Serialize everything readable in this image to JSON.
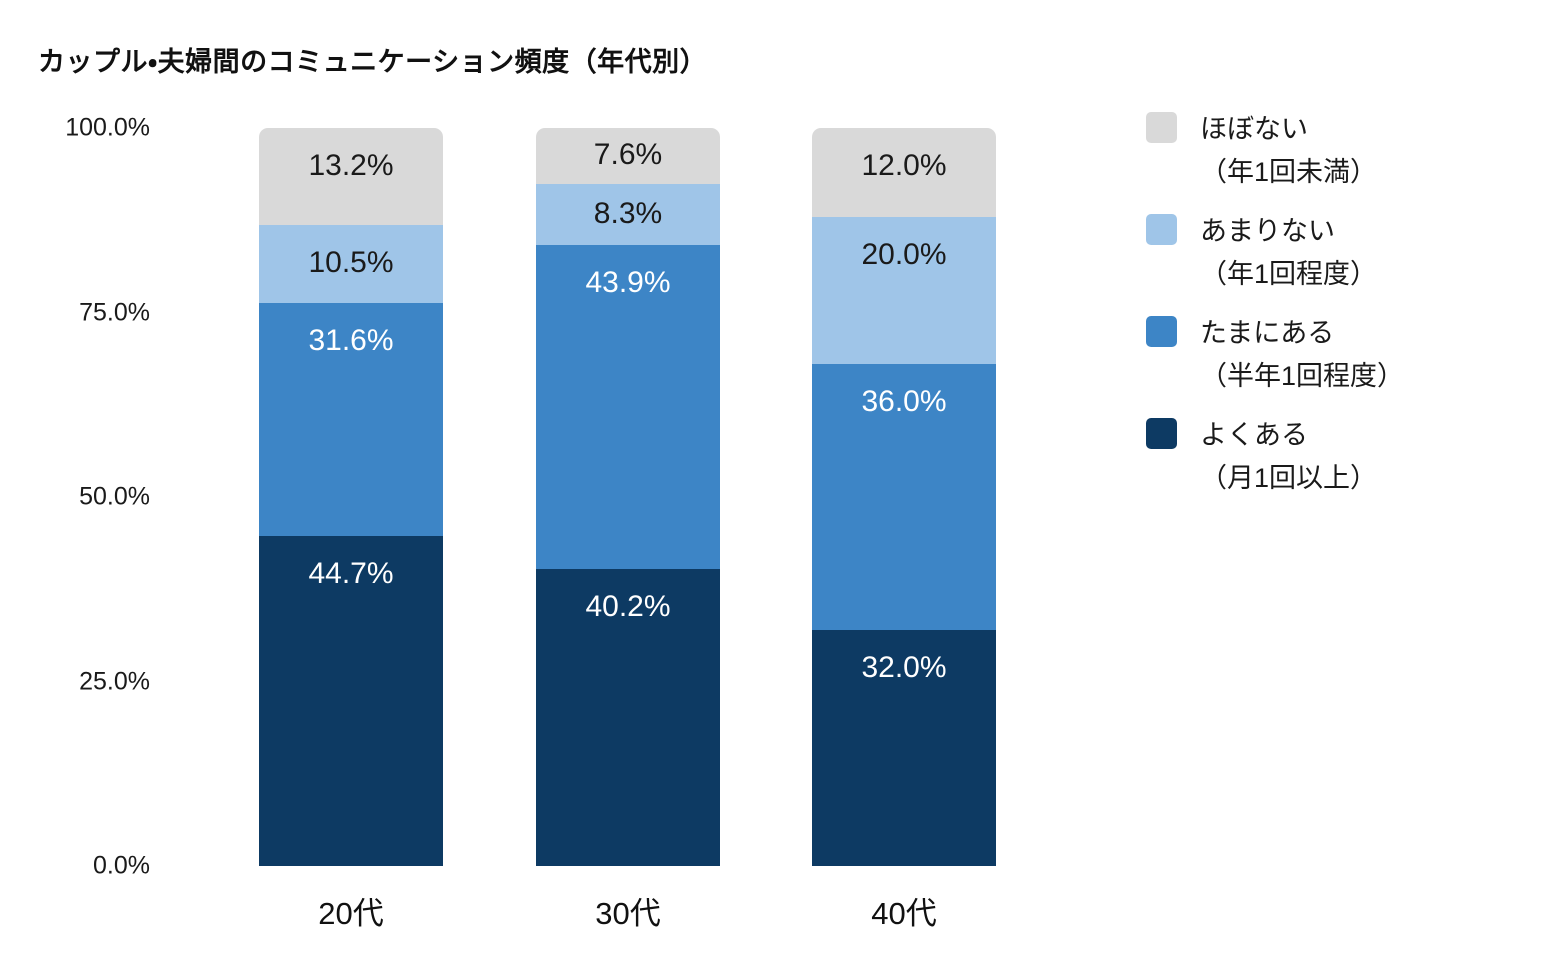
{
  "title": "カップル・夫婦間のコミュニケーション頻度（年代別）",
  "colors": {
    "background": "#ffffff",
    "title_text": "#111111",
    "axis_text": "#1a1a1a",
    "label_dark": "#1a1a1a",
    "label_light": "#ffffff"
  },
  "chart_data": {
    "type": "bar",
    "stacked": true,
    "percent_stacked": true,
    "title": "カップル・夫婦間のコミュニケーション頻度（年代別）",
    "categories": [
      "20代",
      "30代",
      "40代"
    ],
    "series": [
      {
        "name": "よくある（月1回以上）",
        "label": "よくある",
        "sublabel": "（月1回以上）",
        "color": "#0d3a63",
        "text_color": "#ffffff",
        "values": [
          44.7,
          40.2,
          32.0
        ]
      },
      {
        "name": "たまにある（半年1回程度）",
        "label": "たまにある",
        "sublabel": "（半年1回程度）",
        "color": "#3d85c6",
        "text_color": "#ffffff",
        "values": [
          31.6,
          43.9,
          36.0
        ]
      },
      {
        "name": "あまりない（年1回程度）",
        "label": "あまりない",
        "sublabel": "（年1回程度）",
        "color": "#9fc5e8",
        "text_color": "#1a1a1a",
        "values": [
          10.5,
          8.3,
          20.0
        ]
      },
      {
        "name": "ほぼない（年1回未満）",
        "label": "ほぼない",
        "sublabel": "（年1回未満）",
        "color": "#d9d9d9",
        "text_color": "#1a1a1a",
        "values": [
          13.2,
          7.6,
          12.0
        ]
      }
    ],
    "y_ticks": [
      "100.0%",
      "75.0%",
      "50.0%",
      "25.0%",
      "0.0%"
    ],
    "ylim": [
      0,
      100
    ],
    "value_suffix": "%",
    "value_decimals": 1,
    "grid": false,
    "legend_position": "right",
    "legend_order": "reversed"
  }
}
